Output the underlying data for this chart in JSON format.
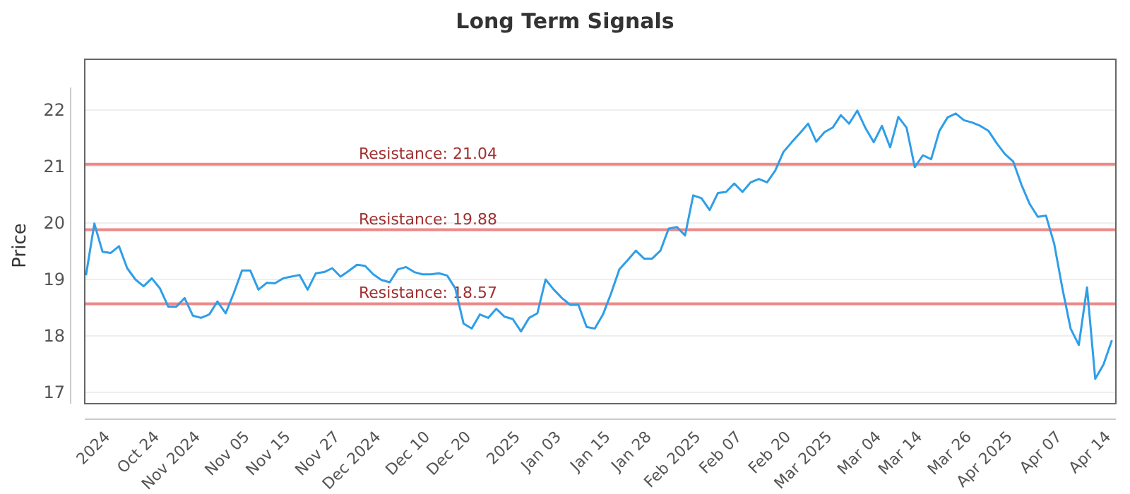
{
  "chart_data": {
    "type": "line",
    "title": "Long Term Signals",
    "ylabel": "Price",
    "categories": [
      null,
      null,
      null,
      "2024",
      null,
      null,
      null,
      null,
      null,
      "Oct 24",
      null,
      null,
      null,
      null,
      "Nov 2024",
      null,
      null,
      null,
      null,
      null,
      "Nov 05",
      null,
      null,
      null,
      null,
      "Nov 15",
      null,
      null,
      null,
      null,
      null,
      "Nov 27",
      null,
      null,
      null,
      null,
      "Dec 2024",
      null,
      null,
      null,
      null,
      null,
      "Dec 10",
      null,
      null,
      null,
      null,
      "Dec 20",
      null,
      null,
      null,
      null,
      null,
      "2025",
      null,
      null,
      null,
      null,
      "Jan 03",
      null,
      null,
      null,
      null,
      null,
      "Jan 15",
      null,
      null,
      null,
      null,
      "Jan 28",
      null,
      null,
      null,
      null,
      null,
      "Feb 2025",
      null,
      null,
      null,
      null,
      "Feb 07",
      null,
      null,
      null,
      null,
      null,
      "Feb 20",
      null,
      null,
      null,
      null,
      "Mar 2025",
      null,
      null,
      null,
      null,
      null,
      "Mar 04",
      null,
      null,
      null,
      null,
      "Mar 14",
      null,
      null,
      null,
      null,
      null,
      "Mar 26",
      null,
      null,
      null,
      null,
      "Apr 2025",
      null,
      null,
      null,
      null,
      null,
      "Apr 07",
      null,
      null,
      null,
      null,
      null,
      "Apr 14"
    ],
    "series": [
      {
        "color": "#2f9ee8",
        "values": [
          19.09,
          19.99,
          19.49,
          19.47,
          19.59,
          19.2,
          19.0,
          18.88,
          19.02,
          18.84,
          18.52,
          18.52,
          18.67,
          18.36,
          18.32,
          18.38,
          18.61,
          18.4,
          18.76,
          19.16,
          19.16,
          18.82,
          18.94,
          18.93,
          19.02,
          19.05,
          19.08,
          18.82,
          19.11,
          19.13,
          19.2,
          19.05,
          19.15,
          19.26,
          19.24,
          19.09,
          18.99,
          18.95,
          19.18,
          19.22,
          19.13,
          19.09,
          19.09,
          19.11,
          19.07,
          18.84,
          18.22,
          18.13,
          18.38,
          18.32,
          18.48,
          18.34,
          18.3,
          18.08,
          18.32,
          18.4,
          19.0,
          18.82,
          18.67,
          18.55,
          18.55,
          18.16,
          18.13,
          18.38,
          18.76,
          19.18,
          19.34,
          19.51,
          19.37,
          19.37,
          19.51,
          19.9,
          19.93,
          19.78,
          20.49,
          20.44,
          20.23,
          20.53,
          20.55,
          20.7,
          20.55,
          20.72,
          20.78,
          20.72,
          20.93,
          21.26,
          21.43,
          21.59,
          21.76,
          21.44,
          21.61,
          21.69,
          21.91,
          21.76,
          21.99,
          21.68,
          21.43,
          21.72,
          21.34,
          21.88,
          21.69,
          20.99,
          21.2,
          21.13,
          21.63,
          21.87,
          21.94,
          21.82,
          21.78,
          21.72,
          21.63,
          21.41,
          21.22,
          21.09,
          20.68,
          20.34,
          20.11,
          20.13,
          19.63,
          18.84,
          18.13,
          17.84,
          18.86,
          17.24,
          17.49,
          17.91
        ]
      }
    ],
    "ylim": [
      16.8,
      22.4
    ],
    "yticks": [
      17,
      18,
      19,
      20,
      21,
      22
    ],
    "grid": "y",
    "marker": "none",
    "line_style": "solid",
    "ref_lines": [
      {
        "axis": "y",
        "value": 21.04,
        "label": "Resistance: 21.04",
        "color": "#ee8888"
      },
      {
        "axis": "y",
        "value": 19.88,
        "label": "Resistance: 19.88",
        "color": "#ee8888"
      },
      {
        "axis": "y",
        "value": 18.57,
        "label": "Resistance: 18.57",
        "color": "#ee8888"
      }
    ]
  }
}
